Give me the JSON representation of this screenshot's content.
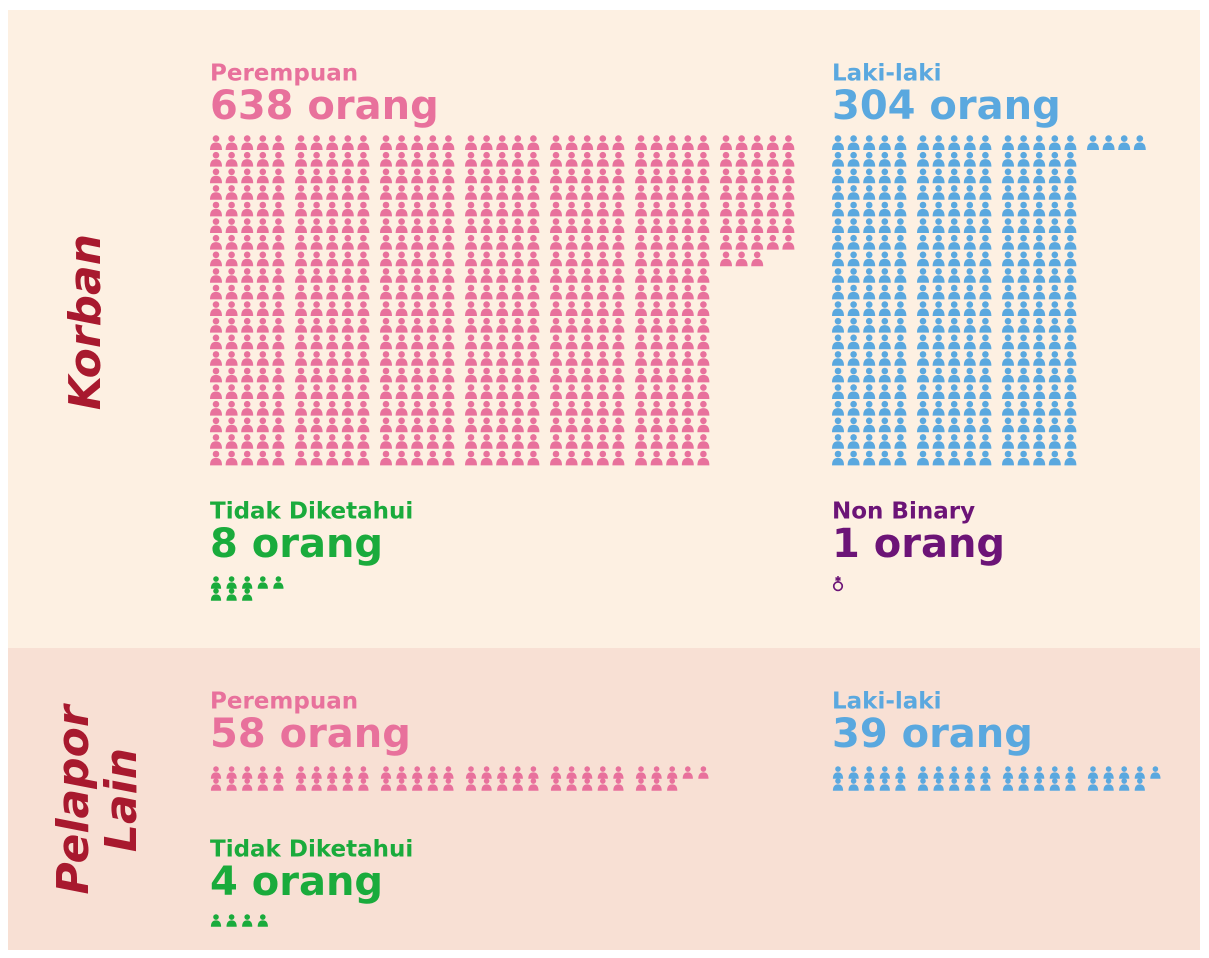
{
  "sections": [
    {
      "title": "Korban",
      "groups": [
        {
          "label": "Perempuan",
          "count": 638,
          "count_label": "638 orang",
          "color": "#e8719c"
        },
        {
          "label": "Laki-laki",
          "count": 304,
          "count_label": "304 orang",
          "color": "#5aa8df"
        },
        {
          "label": "Tidak Diketahui",
          "count": 8,
          "count_label": "8 orang",
          "color": "#1aab3c"
        },
        {
          "label": "Non Binary",
          "count": 1,
          "count_label": "1 orang",
          "color": "#6c1477"
        }
      ]
    },
    {
      "title": "Pelapor Lain",
      "groups": [
        {
          "label": "Perempuan",
          "count": 58,
          "count_label": "58 orang",
          "color": "#e8719c"
        },
        {
          "label": "Laki-laki",
          "count": 39,
          "count_label": "39 orang",
          "color": "#5aa8df"
        },
        {
          "label": "Tidak Diketahui",
          "count": 4,
          "count_label": "4 orang",
          "color": "#1aab3c"
        }
      ]
    }
  ]
}
